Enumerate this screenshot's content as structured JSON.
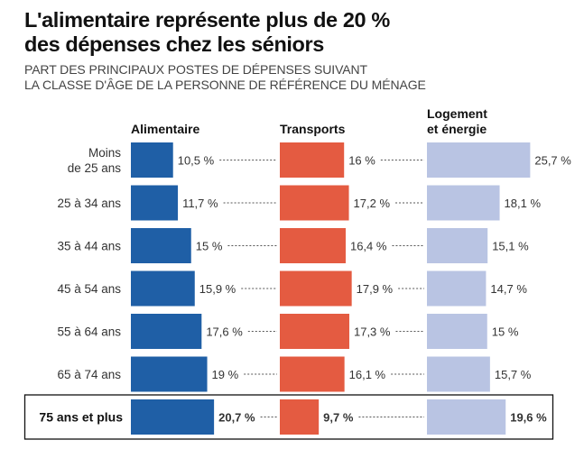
{
  "title_line1": "L'alimentaire représente plus de 20 %",
  "title_line2": "des dépenses chez les séniors",
  "subtitle_line1": "PART DES PRINCIPAUX POSTES DE DÉPENSES SUIVANT",
  "subtitle_line2": "LA CLASSE D'ÂGE DE LA PERSONNE DE RÉFÉRENCE DU MÉNAGE",
  "colors": {
    "alimentaire": "#1f5fa6",
    "transports": "#e45b41",
    "logement": "#b9c4e3",
    "highlight_border": "#111111"
  },
  "chart_data": {
    "type": "bar",
    "unit": "%",
    "categories": [
      [
        "Moins",
        "de 25 ans"
      ],
      [
        "25 à 34 ans"
      ],
      [
        "35 à 44 ans"
      ],
      [
        "45 à 54 ans"
      ],
      [
        "55 à 64 ans"
      ],
      [
        "65 à 74 ans"
      ],
      [
        "75 ans et plus"
      ]
    ],
    "highlighted_category": 6,
    "series": [
      {
        "name": [
          "Alimentaire"
        ],
        "key": "alimentaire",
        "values": [
          10.5,
          11.7,
          15,
          15.9,
          17.6,
          19,
          20.7
        ],
        "labels": [
          "10,5 %",
          "11,7 %",
          "15 %",
          "15,9 %",
          "17,6 %",
          "19 %",
          "20,7 %"
        ]
      },
      {
        "name": [
          "Transports"
        ],
        "key": "transports",
        "values": [
          16,
          17.2,
          16.4,
          17.9,
          17.3,
          16.1,
          9.7
        ],
        "labels": [
          "16 %",
          "17,2 %",
          "16,4 %",
          "17,9 %",
          "17,3 %",
          "16,1 %",
          "9,7 %"
        ]
      },
      {
        "name": [
          "Logement",
          "et énergie"
        ],
        "key": "logement",
        "values": [
          25.7,
          18.1,
          15.1,
          14.7,
          15,
          15.7,
          19.6
        ],
        "labels": [
          "25,7 %",
          "18,1 %",
          "15,1 %",
          "14,7 %",
          "15 %",
          "15,7 %",
          "19,6 %"
        ]
      }
    ],
    "grid": false,
    "legend": "column headers"
  }
}
